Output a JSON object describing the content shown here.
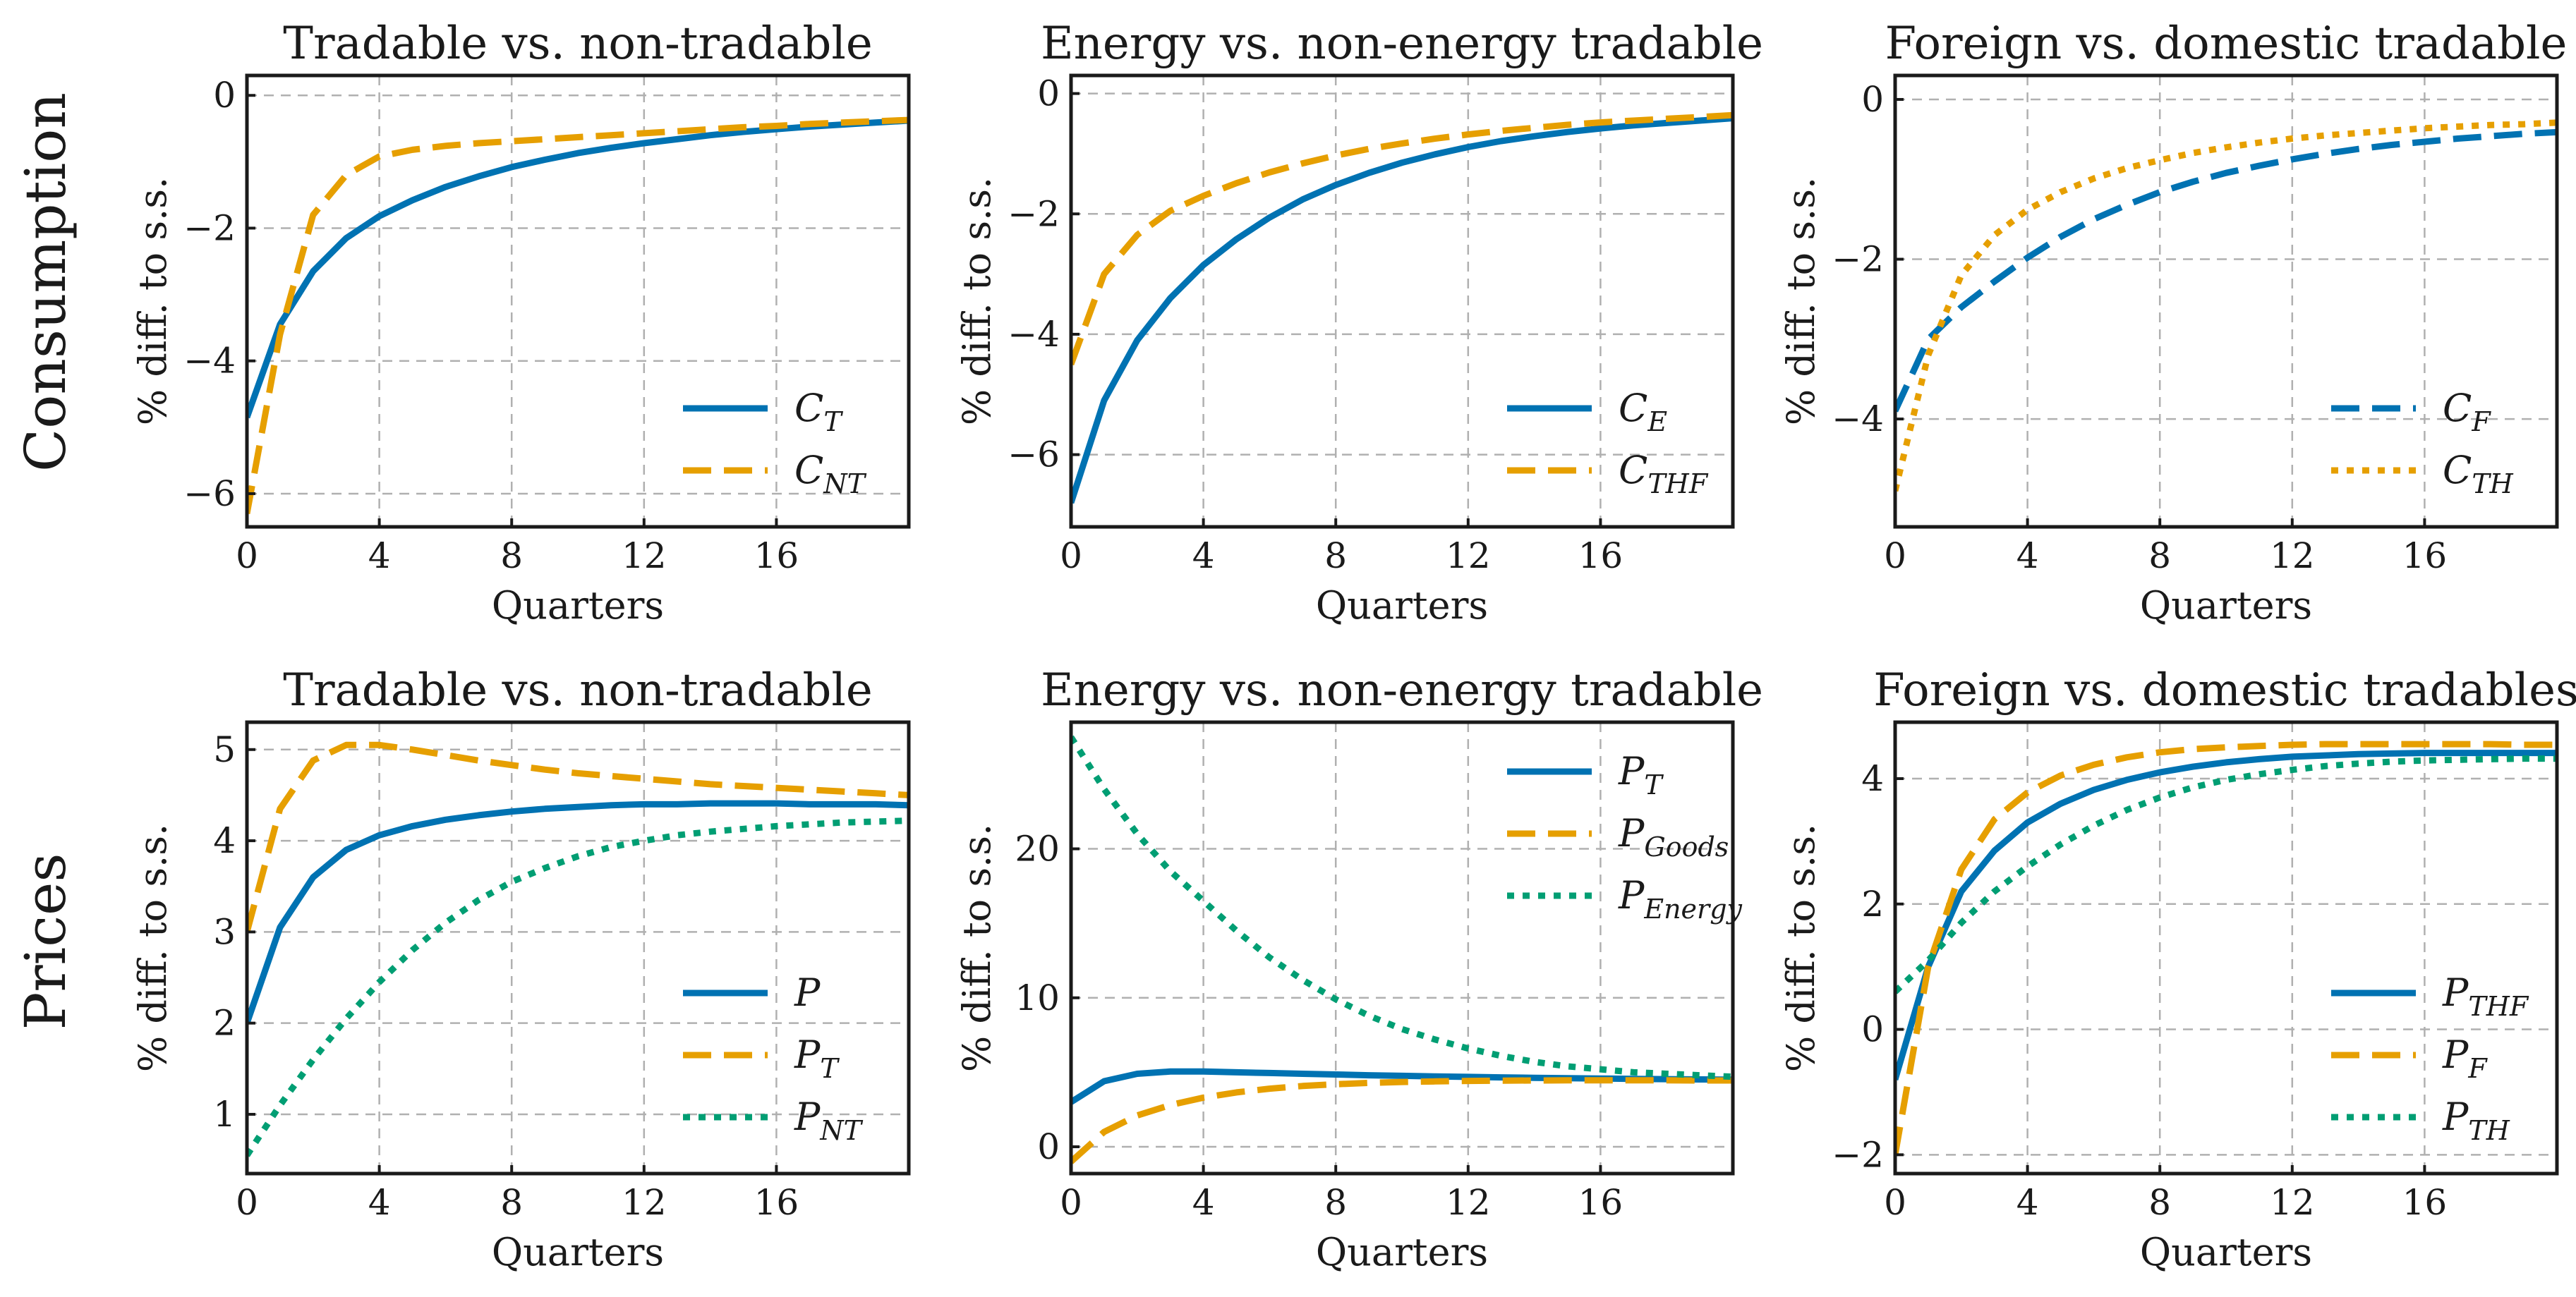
{
  "row_labels": [
    "Consumption",
    "Prices"
  ],
  "colors": {
    "blue": "#0072b2",
    "orange": "#e69f00",
    "green": "#009e73"
  },
  "chart_data": [
    {
      "type": "line",
      "title": "Tradable vs. non-tradable",
      "xlabel": "Quarters",
      "ylabel": "% diff. to s.s.",
      "xlim": [
        0,
        20
      ],
      "ylim": [
        -6.5,
        0.3
      ],
      "xticks": [
        0,
        4,
        8,
        12,
        16
      ],
      "yticks": [
        0,
        -2,
        -4,
        -6
      ],
      "ytick_labels": [
        "0",
        "−2",
        "−4",
        "−6"
      ],
      "grid": true,
      "legend_position": "lower-right",
      "x": [
        0,
        1,
        2,
        3,
        4,
        5,
        6,
        7,
        8,
        9,
        10,
        11,
        12,
        13,
        14,
        15,
        16,
        17,
        18,
        19,
        20
      ],
      "series": [
        {
          "name": "C",
          "sub": "T",
          "style": "solid",
          "color": "blue",
          "values": [
            -4.85,
            -3.45,
            -2.65,
            -2.15,
            -1.82,
            -1.58,
            -1.38,
            -1.22,
            -1.08,
            -0.97,
            -0.87,
            -0.79,
            -0.72,
            -0.66,
            -0.6,
            -0.55,
            -0.51,
            -0.47,
            -0.44,
            -0.41,
            -0.38
          ]
        },
        {
          "name": "C",
          "sub": "NT",
          "style": "dashed",
          "color": "orange",
          "values": [
            -6.3,
            -3.6,
            -1.8,
            -1.2,
            -0.92,
            -0.82,
            -0.76,
            -0.72,
            -0.69,
            -0.66,
            -0.63,
            -0.6,
            -0.57,
            -0.54,
            -0.51,
            -0.48,
            -0.46,
            -0.43,
            -0.41,
            -0.39,
            -0.37
          ]
        }
      ]
    },
    {
      "type": "line",
      "title": "Energy vs. non-energy tradable",
      "xlabel": "Quarters",
      "ylabel": "% diff. to s.s.",
      "xlim": [
        0,
        20
      ],
      "ylim": [
        -7.2,
        0.3
      ],
      "xticks": [
        0,
        4,
        8,
        12,
        16
      ],
      "yticks": [
        0,
        -2,
        -4,
        -6
      ],
      "ytick_labels": [
        "0",
        "−2",
        "−4",
        "−6"
      ],
      "grid": true,
      "legend_position": "lower-right",
      "x": [
        0,
        1,
        2,
        3,
        4,
        5,
        6,
        7,
        8,
        9,
        10,
        11,
        12,
        13,
        14,
        15,
        16,
        17,
        18,
        19,
        20
      ],
      "series": [
        {
          "name": "C",
          "sub": "E",
          "style": "solid",
          "color": "blue",
          "values": [
            -6.8,
            -5.1,
            -4.1,
            -3.4,
            -2.85,
            -2.42,
            -2.06,
            -1.76,
            -1.52,
            -1.32,
            -1.15,
            -1.01,
            -0.89,
            -0.79,
            -0.71,
            -0.64,
            -0.58,
            -0.53,
            -0.49,
            -0.45,
            -0.41
          ]
        },
        {
          "name": "C",
          "sub": "THF",
          "style": "dashed",
          "color": "orange",
          "values": [
            -4.5,
            -3.0,
            -2.35,
            -1.95,
            -1.7,
            -1.49,
            -1.31,
            -1.16,
            -1.03,
            -0.92,
            -0.83,
            -0.75,
            -0.68,
            -0.62,
            -0.57,
            -0.52,
            -0.48,
            -0.45,
            -0.42,
            -0.39,
            -0.36
          ]
        }
      ]
    },
    {
      "type": "line",
      "title": "Foreign vs. domestic tradable",
      "xlabel": "Quarters",
      "ylabel": "% diff. to s.s.",
      "xlim": [
        0,
        20
      ],
      "ylim": [
        -5.35,
        0.3
      ],
      "xticks": [
        0,
        4,
        8,
        12,
        16
      ],
      "yticks": [
        0,
        -2,
        -4
      ],
      "ytick_labels": [
        "0",
        "−2",
        "−4"
      ],
      "grid": true,
      "legend_position": "lower-right",
      "x": [
        0,
        1,
        2,
        3,
        4,
        5,
        6,
        7,
        8,
        9,
        10,
        11,
        12,
        13,
        14,
        15,
        16,
        17,
        18,
        19,
        20
      ],
      "series": [
        {
          "name": "C",
          "sub": "F",
          "style": "dashed",
          "color": "blue",
          "values": [
            -3.9,
            -3.0,
            -2.6,
            -2.28,
            -1.98,
            -1.72,
            -1.5,
            -1.32,
            -1.16,
            -1.03,
            -0.92,
            -0.83,
            -0.75,
            -0.68,
            -0.62,
            -0.57,
            -0.53,
            -0.49,
            -0.46,
            -0.43,
            -0.41
          ]
        },
        {
          "name": "C",
          "sub": "TH",
          "style": "dotted",
          "color": "orange",
          "values": [
            -4.9,
            -3.2,
            -2.2,
            -1.7,
            -1.38,
            -1.16,
            -0.99,
            -0.86,
            -0.76,
            -0.67,
            -0.6,
            -0.54,
            -0.49,
            -0.45,
            -0.42,
            -0.39,
            -0.36,
            -0.34,
            -0.32,
            -0.31,
            -0.29
          ]
        }
      ]
    },
    {
      "type": "line",
      "title": "Tradable vs. non-tradable",
      "xlabel": "Quarters",
      "ylabel": "% diff. to s.s.",
      "xlim": [
        0,
        20
      ],
      "ylim": [
        0.35,
        5.3
      ],
      "xticks": [
        0,
        4,
        8,
        12,
        16
      ],
      "yticks": [
        1,
        2,
        3,
        4,
        5
      ],
      "ytick_labels": [
        "1",
        "2",
        "3",
        "4",
        "5"
      ],
      "grid": true,
      "legend_position": "lower-right",
      "x": [
        0,
        1,
        2,
        3,
        4,
        5,
        6,
        7,
        8,
        9,
        10,
        11,
        12,
        13,
        14,
        15,
        16,
        17,
        18,
        19,
        20
      ],
      "series": [
        {
          "name": "P",
          "sub": "",
          "style": "solid",
          "color": "blue",
          "values": [
            2.0,
            3.05,
            3.6,
            3.9,
            4.06,
            4.16,
            4.23,
            4.28,
            4.32,
            4.35,
            4.37,
            4.39,
            4.4,
            4.4,
            4.41,
            4.41,
            4.41,
            4.4,
            4.4,
            4.4,
            4.39
          ]
        },
        {
          "name": "P",
          "sub": "T",
          "style": "dashed",
          "color": "orange",
          "values": [
            3.0,
            4.35,
            4.88,
            5.05,
            5.05,
            5.0,
            4.94,
            4.88,
            4.83,
            4.78,
            4.74,
            4.71,
            4.68,
            4.65,
            4.62,
            4.6,
            4.58,
            4.56,
            4.54,
            4.52,
            4.5
          ]
        },
        {
          "name": "P",
          "sub": "NT",
          "style": "dotted",
          "color": "green",
          "values": [
            0.55,
            1.1,
            1.6,
            2.05,
            2.45,
            2.8,
            3.1,
            3.35,
            3.55,
            3.7,
            3.83,
            3.93,
            4.0,
            4.06,
            4.1,
            4.13,
            4.16,
            4.18,
            4.2,
            4.21,
            4.22
          ]
        }
      ]
    },
    {
      "type": "line",
      "title": "Energy vs. non-energy tradable",
      "xlabel": "Quarters",
      "ylabel": "% diff. to s.s.",
      "xlim": [
        0,
        20
      ],
      "ylim": [
        -1.8,
        28.5
      ],
      "xticks": [
        0,
        4,
        8,
        12,
        16
      ],
      "yticks": [
        0,
        10,
        20
      ],
      "ytick_labels": [
        "0",
        "10",
        "20"
      ],
      "grid": true,
      "legend_position": "upper-right",
      "x": [
        0,
        1,
        2,
        3,
        4,
        5,
        6,
        7,
        8,
        9,
        10,
        11,
        12,
        13,
        14,
        15,
        16,
        17,
        18,
        19,
        20
      ],
      "series": [
        {
          "name": "P",
          "sub": "T",
          "style": "solid",
          "color": "blue",
          "values": [
            3.0,
            4.4,
            4.9,
            5.05,
            5.05,
            5.0,
            4.95,
            4.9,
            4.85,
            4.8,
            4.76,
            4.72,
            4.69,
            4.66,
            4.63,
            4.6,
            4.58,
            4.56,
            4.54,
            4.52,
            4.5
          ]
        },
        {
          "name": "P",
          "sub": "Goods",
          "style": "dashed",
          "color": "orange",
          "values": [
            -1.0,
            1.0,
            2.1,
            2.8,
            3.3,
            3.65,
            3.9,
            4.08,
            4.2,
            4.29,
            4.35,
            4.39,
            4.42,
            4.44,
            4.45,
            4.46,
            4.46,
            4.46,
            4.46,
            4.45,
            4.45
          ]
        },
        {
          "name": "P",
          "sub": "Energy",
          "style": "dotted",
          "color": "green",
          "values": [
            27.5,
            24.0,
            21.0,
            18.5,
            16.5,
            14.5,
            12.7,
            11.2,
            9.9,
            8.8,
            7.9,
            7.2,
            6.6,
            6.1,
            5.7,
            5.4,
            5.2,
            5.0,
            4.9,
            4.8,
            4.7
          ]
        }
      ]
    },
    {
      "type": "line",
      "title": "Foreign vs. domestic tradables",
      "xlabel": "Quarters",
      "ylabel": "% diff. to s.s.",
      "xlim": [
        0,
        20
      ],
      "ylim": [
        -2.3,
        4.9
      ],
      "xticks": [
        0,
        4,
        8,
        12,
        16
      ],
      "yticks": [
        -2,
        0,
        2,
        4
      ],
      "ytick_labels": [
        "−2",
        "0",
        "2",
        "4"
      ],
      "grid": true,
      "legend_position": "lower-right",
      "x": [
        0,
        1,
        2,
        3,
        4,
        5,
        6,
        7,
        8,
        9,
        10,
        11,
        12,
        13,
        14,
        15,
        16,
        17,
        18,
        19,
        20
      ],
      "series": [
        {
          "name": "P",
          "sub": "THF",
          "style": "solid",
          "color": "blue",
          "values": [
            -0.8,
            1.0,
            2.2,
            2.85,
            3.3,
            3.6,
            3.82,
            3.98,
            4.1,
            4.19,
            4.26,
            4.31,
            4.35,
            4.37,
            4.39,
            4.4,
            4.41,
            4.41,
            4.41,
            4.41,
            4.41
          ]
        },
        {
          "name": "P",
          "sub": "F",
          "style": "dashed",
          "color": "orange",
          "values": [
            -2.0,
            1.0,
            2.55,
            3.35,
            3.78,
            4.05,
            4.22,
            4.34,
            4.42,
            4.47,
            4.5,
            4.52,
            4.54,
            4.55,
            4.55,
            4.55,
            4.55,
            4.55,
            4.55,
            4.54,
            4.54
          ]
        },
        {
          "name": "P",
          "sub": "TH",
          "style": "dotted",
          "color": "green",
          "values": [
            0.6,
            1.1,
            1.7,
            2.2,
            2.6,
            2.95,
            3.25,
            3.5,
            3.7,
            3.86,
            3.98,
            4.07,
            4.14,
            4.2,
            4.24,
            4.27,
            4.29,
            4.3,
            4.31,
            4.32,
            4.32
          ]
        }
      ]
    }
  ]
}
